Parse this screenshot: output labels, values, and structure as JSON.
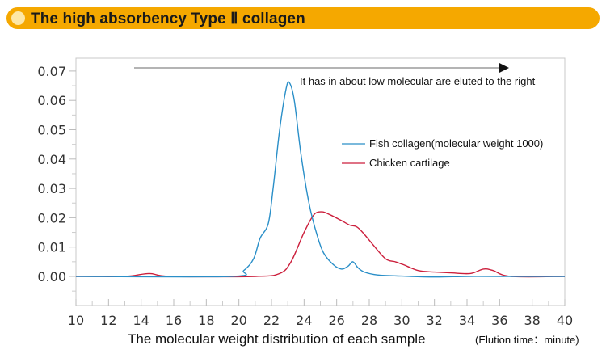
{
  "header": {
    "title": "The high absorbency Type Ⅱ collagen"
  },
  "chart_data": {
    "type": "line",
    "title": "The high absorbency Type Ⅱ collagen",
    "xlabel": "The molecular weight distribution of each sample",
    "xunit": "(Elution time：minute)",
    "ylabel": "",
    "xlim": [
      10,
      40
    ],
    "ylim": [
      -0.01,
      0.075
    ],
    "x_ticks": [
      "10",
      "12",
      "14",
      "16",
      "18",
      "20",
      "22",
      "24",
      "26",
      "28",
      "30",
      "32",
      "34",
      "36",
      "38",
      "40"
    ],
    "y_ticks": [
      "0.00",
      "0.01",
      "0.02",
      "0.03",
      "0.04",
      "0.05",
      "0.06",
      "0.07"
    ],
    "annotation": "It has in about low molecular are eluted to the right",
    "legend_position": "right",
    "series": [
      {
        "name": "Fish collagen(molecular weight 1000)",
        "color": "#2a8fc8",
        "x": [
          10,
          19.5,
          20.3,
          20.9,
          21.3,
          21.8,
          22.1,
          22.5,
          22.9,
          23.1,
          23.4,
          23.8,
          24.3,
          24.8,
          25.2,
          25.8,
          26.3,
          26.7,
          27.0,
          27.3,
          27.7,
          28.5,
          30,
          32,
          34,
          36,
          40
        ],
        "y": [
          0,
          0,
          0.002,
          0.006,
          0.013,
          0.018,
          0.03,
          0.05,
          0.064,
          0.066,
          0.06,
          0.042,
          0.025,
          0.014,
          0.008,
          0.004,
          0.0025,
          0.0035,
          0.005,
          0.003,
          0.0015,
          0.0005,
          0.0001,
          -0.0002,
          0,
          0,
          0
        ]
      },
      {
        "name": "Chicken cartilage",
        "color": "#cc1f3c",
        "x": [
          10,
          13.0,
          14.5,
          15.8,
          21.0,
          22.5,
          23.2,
          24.0,
          24.6,
          25.1,
          25.6,
          26.3,
          26.8,
          27.2,
          27.6,
          28.2,
          29.0,
          29.6,
          30.1,
          31.0,
          32.0,
          33.0,
          34.2,
          35.0,
          35.6,
          36.7,
          40
        ],
        "y": [
          0,
          0,
          0.001,
          0,
          0,
          0.001,
          0.005,
          0.015,
          0.021,
          0.022,
          0.021,
          0.019,
          0.0175,
          0.017,
          0.015,
          0.011,
          0.006,
          0.005,
          0.004,
          0.002,
          0.0015,
          0.0012,
          0.001,
          0.0025,
          0.002,
          0,
          0
        ]
      }
    ]
  }
}
